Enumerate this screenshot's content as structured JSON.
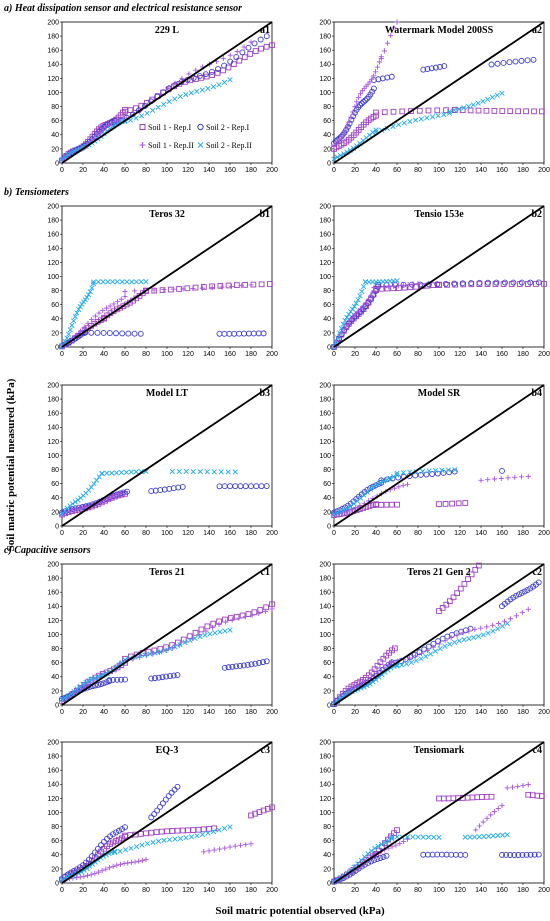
{
  "figure": {
    "ylabel": "Soil matric potential measured  (kPa)",
    "xlabel": "Soil matric potential observed  (kPa)",
    "sections": [
      {
        "label": "a) Heat dissipation sensor and electrical  resistance sensor"
      },
      {
        "label": "b) Tensiometers"
      },
      {
        "label": "c) Capacitive sensors"
      }
    ]
  },
  "colors": {
    "s1r1": "#9e3fbf",
    "s2r1": "#3c3cc8",
    "s1r2": "#a855e0",
    "s2r2": "#1fa9e6",
    "line": "#000000"
  },
  "legend": {
    "entries": [
      "Soil 1 - Rep.I",
      "Soil 2 - Rep.I",
      "Soil 1 - Rep.II",
      "Soil 2 - Rep.II"
    ]
  },
  "chart_data": [
    {
      "type": "scatter",
      "id": "a1",
      "title": "229 L",
      "xlim": [
        0,
        200
      ],
      "ylim": [
        0,
        200
      ],
      "series": [
        {
          "key": "s1r1",
          "segments": [
            [
              0,
              2,
              60,
              75,
              30
            ],
            [
              60,
              75,
              200,
              165,
              28
            ]
          ]
        },
        {
          "key": "s2r1",
          "segments": [
            [
              0,
              2,
              50,
              60,
              22
            ],
            [
              50,
              60,
              195,
              175,
              26
            ]
          ]
        },
        {
          "key": "s1r2",
          "segments": [
            [
              0,
              3,
              55,
              62,
              22
            ],
            [
              55,
              62,
              180,
              175,
              20
            ]
          ]
        },
        {
          "key": "s2r2",
          "segments": [
            [
              0,
              4,
              60,
              60,
              22
            ],
            [
              60,
              60,
              160,
              120,
              20
            ]
          ]
        }
      ]
    },
    {
      "type": "scatter",
      "id": "a2",
      "title": "Watermark Model 200SS",
      "xlim": [
        0,
        200
      ],
      "ylim": [
        0,
        200
      ],
      "series": [
        {
          "key": "s1r1",
          "segments": [
            [
              0,
              18,
              40,
              67,
              18
            ],
            [
              40,
              72,
              115,
              75,
              10
            ],
            [
              115,
              75,
              198,
              73,
              12
            ]
          ]
        },
        {
          "key": "s2r1",
          "segments": [
            [
              0,
              25,
              38,
              108,
              24
            ],
            [
              38,
              118,
              55,
              122,
              5
            ],
            [
              85,
              132,
              105,
              138,
              6
            ],
            [
              150,
              140,
              190,
              146,
              8
            ]
          ]
        },
        {
          "key": "s1r2",
          "segments": [
            [
              0,
              20,
              45,
              150,
              26
            ],
            [
              45,
              150,
              60,
              200,
              6
            ]
          ]
        },
        {
          "key": "s2r2",
          "segments": [
            [
              0,
              4,
              40,
              45,
              14
            ],
            [
              40,
              45,
              110,
              72,
              14
            ],
            [
              110,
              72,
              160,
              98,
              12
            ]
          ]
        }
      ]
    },
    {
      "type": "scatter",
      "id": "b1",
      "title": "Teros 32",
      "xlim": [
        0,
        200
      ],
      "ylim": [
        0,
        200
      ],
      "series": [
        {
          "key": "s1r1",
          "segments": [
            [
              0,
              2,
              40,
              40,
              14
            ],
            [
              40,
              40,
              80,
              80,
              14
            ],
            [
              80,
              80,
              198,
              90,
              16
            ]
          ]
        },
        {
          "key": "s2r1",
          "segments": [
            [
              0,
              2,
              22,
              20,
              10
            ],
            [
              22,
              20,
              75,
              19,
              10
            ],
            [
              150,
              19,
              192,
              19,
              10
            ]
          ]
        },
        {
          "key": "s1r2",
          "segments": [
            [
              0,
              2,
              60,
              75,
              18
            ],
            [
              60,
              78,
              180,
              88,
              14
            ]
          ]
        },
        {
          "key": "s2r2",
          "segments": [
            [
              0,
              2,
              30,
              92,
              20
            ],
            [
              30,
              92,
              80,
              93,
              12
            ]
          ]
        }
      ]
    },
    {
      "type": "scatter",
      "id": "b2",
      "title": "Tensio 153e",
      "xlim": [
        0,
        200
      ],
      "ylim": [
        0,
        200
      ],
      "series": [
        {
          "key": "s1r1",
          "segments": [
            [
              0,
              2,
              40,
              80,
              18
            ],
            [
              40,
              82,
              100,
              88,
              12
            ],
            [
              100,
              88,
              200,
              90,
              14
            ]
          ]
        },
        {
          "key": "s2r1",
          "segments": [
            [
              0,
              2,
              42,
              85,
              18
            ],
            [
              42,
              88,
              195,
              92,
              20
            ]
          ]
        },
        {
          "key": "s1r2",
          "segments": [
            [
              0,
              2,
              38,
              82,
              16
            ],
            [
              38,
              84,
              80,
              90,
              10
            ]
          ]
        },
        {
          "key": "s2r2",
          "segments": [
            [
              0,
              2,
              30,
              92,
              18
            ],
            [
              30,
              92,
              60,
              94,
              10
            ]
          ]
        }
      ]
    },
    {
      "type": "scatter",
      "id": "b3",
      "title": "Model LT",
      "xlim": [
        0,
        200
      ],
      "ylim": [
        0,
        200
      ],
      "series": [
        {
          "key": "s1r1",
          "segments": [
            [
              0,
              15,
              60,
              45,
              20
            ]
          ]
        },
        {
          "key": "s2r1",
          "segments": [
            [
              0,
              18,
              62,
              48,
              20
            ],
            [
              85,
              50,
              115,
              55,
              8
            ],
            [
              150,
              56,
              195,
              57,
              10
            ]
          ]
        },
        {
          "key": "s1r2",
          "segments": [
            [
              0,
              15,
              55,
              45,
              16
            ]
          ]
        },
        {
          "key": "s2r2",
          "segments": [
            [
              0,
              15,
              38,
              72,
              16
            ],
            [
              38,
              75,
              80,
              77,
              10
            ],
            [
              105,
              77,
              165,
              77,
              10
            ]
          ]
        }
      ]
    },
    {
      "type": "scatter",
      "id": "b4",
      "title": "Model SR",
      "xlim": [
        0,
        200
      ],
      "ylim": [
        0,
        200
      ],
      "series": [
        {
          "key": "s1r1",
          "segments": [
            [
              0,
              15,
              40,
              30,
              14
            ],
            [
              40,
              30,
              60,
              30,
              5
            ],
            [
              100,
              31,
              125,
              33,
              5
            ]
          ]
        },
        {
          "key": "s2r1",
          "segments": [
            [
              0,
              18,
              45,
              62,
              18
            ],
            [
              45,
              65,
              115,
              78,
              14
            ],
            [
              160,
              78,
              165,
              78,
              1
            ]
          ]
        },
        {
          "key": "s1r2",
          "segments": [
            [
              0,
              15,
              70,
              60,
              18
            ],
            [
              140,
              65,
              185,
              70,
              8
            ]
          ]
        },
        {
          "key": "s2r2",
          "segments": [
            [
              0,
              15,
              60,
              75,
              20
            ],
            [
              60,
              75,
              115,
              80,
              10
            ]
          ]
        }
      ]
    },
    {
      "type": "scatter",
      "id": "c1",
      "title": "Teros 21",
      "xlim": [
        0,
        200
      ],
      "ylim": [
        0,
        200
      ],
      "series": [
        {
          "key": "s1r1",
          "segments": [
            [
              0,
              8,
              60,
              62,
              18
            ],
            [
              60,
              62,
              200,
              145,
              26
            ]
          ]
        },
        {
          "key": "s2r1",
          "segments": [
            [
              0,
              10,
              45,
              35,
              18
            ],
            [
              45,
              35,
              60,
              36,
              5
            ],
            [
              85,
              38,
              110,
              42,
              8
            ],
            [
              155,
              52,
              195,
              62,
              12
            ]
          ]
        },
        {
          "key": "s1r2",
          "segments": [
            [
              0,
              8,
              55,
              55,
              16
            ],
            [
              55,
              55,
              200,
              140,
              24
            ]
          ]
        },
        {
          "key": "s2r2",
          "segments": [
            [
              0,
              10,
              60,
              62,
              22
            ],
            [
              60,
              62,
              160,
              108,
              22
            ]
          ]
        }
      ]
    },
    {
      "type": "scatter",
      "id": "c2",
      "title": "Teros 21 Gen 2",
      "xlim": [
        0,
        200
      ],
      "ylim": [
        0,
        200
      ],
      "series": [
        {
          "key": "s1r1",
          "segments": [
            [
              0,
              2,
              58,
              78,
              22
            ],
            [
              100,
              133,
              138,
              195,
              12
            ]
          ]
        },
        {
          "key": "s2r1",
          "segments": [
            [
              0,
              2,
              55,
              58,
              20
            ],
            [
              55,
              58,
              130,
              110,
              18
            ],
            [
              160,
              140,
              195,
              175,
              14
            ]
          ]
        },
        {
          "key": "s1r2",
          "segments": [
            [
              0,
              2,
              55,
              60,
              18
            ],
            [
              55,
              60,
              185,
              135,
              24
            ]
          ]
        },
        {
          "key": "s2r2",
          "segments": [
            [
              0,
              2,
              60,
              55,
              22
            ],
            [
              60,
              55,
              165,
              115,
              24
            ]
          ]
        }
      ]
    },
    {
      "type": "scatter",
      "id": "c3",
      "title": "EQ-3",
      "xlim": [
        0,
        200
      ],
      "ylim": [
        0,
        200
      ],
      "series": [
        {
          "key": "s1r1",
          "segments": [
            [
              0,
              2,
              60,
              68,
              22
            ],
            [
              60,
              68,
              145,
              78,
              18
            ],
            [
              180,
              95,
              200,
              108,
              6
            ]
          ]
        },
        {
          "key": "s2r1",
          "segments": [
            [
              0,
              2,
              60,
              82,
              22
            ],
            [
              85,
              95,
              110,
              135,
              10
            ]
          ]
        },
        {
          "key": "s1r2",
          "segments": [
            [
              0,
              2,
              80,
              35,
              24
            ],
            [
              135,
              45,
              180,
              55,
              10
            ]
          ]
        },
        {
          "key": "s2r2",
          "segments": [
            [
              0,
              2,
              50,
              45,
              20
            ],
            [
              50,
              45,
              160,
              78,
              22
            ]
          ]
        }
      ]
    },
    {
      "type": "scatter",
      "id": "c4",
      "title": "Tensiomark",
      "xlim": [
        0,
        200
      ],
      "ylim": [
        0,
        200
      ],
      "series": [
        {
          "key": "s1r1",
          "segments": [
            [
              0,
              2,
              40,
              40,
              14
            ],
            [
              40,
              40,
              60,
              75,
              8
            ],
            [
              100,
              120,
              150,
              122,
              12
            ],
            [
              185,
              125,
              198,
              123,
              4
            ]
          ]
        },
        {
          "key": "s2r1",
          "segments": [
            [
              0,
              2,
              50,
              40,
              18
            ],
            [
              85,
              40,
              125,
              40,
              10
            ],
            [
              160,
              40,
              195,
              40,
              10
            ]
          ]
        },
        {
          "key": "s1r2",
          "segments": [
            [
              0,
              2,
              70,
              65,
              20
            ],
            [
              135,
              75,
              160,
              110,
              8
            ],
            [
              165,
              135,
              185,
              140,
              5
            ]
          ]
        },
        {
          "key": "s2r2",
          "segments": [
            [
              0,
              2,
              55,
              65,
              18
            ],
            [
              55,
              65,
              100,
              65,
              10
            ],
            [
              125,
              65,
              165,
              68,
              10
            ]
          ]
        }
      ]
    }
  ]
}
